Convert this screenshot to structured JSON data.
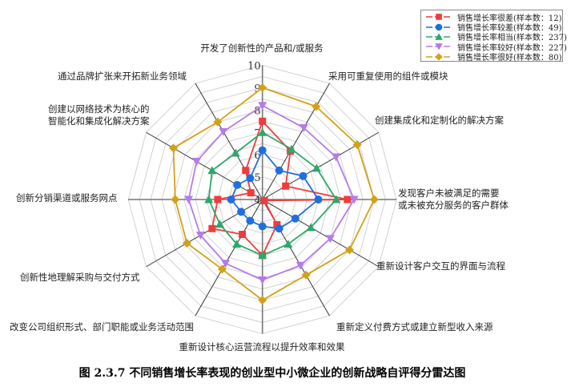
{
  "chart_data": {
    "type": "radar",
    "title": "",
    "axes": [
      "开发了创新性的产品和/或服务",
      "采用可重复使用的组件或模块",
      "创建集成化和定制化的解决方案",
      "发现客户未被满足的需要\n或未被充分服务的客户群体",
      "重新设计客户交互的界面与流程",
      "重新定义付费方式或建立新型收入来源",
      "重新设计核心运营流程以提升效率和效果",
      "改变公司组织形式、部门职能或业务活动范围",
      "创新性地理解采购与交付方式",
      "创新分销渠道或服务网点",
      "创建以网络技术为核心的\n智能化和集成化解决方案",
      "通过品牌扩张来开拓新业务领域"
    ],
    "rlim": [
      4,
      10
    ],
    "r_ticks": [
      "4",
      "5",
      "6",
      "7",
      "8",
      "9",
      "10"
    ],
    "grid": true,
    "legend_position": "top-right",
    "series": [
      {
        "name": "销售增长率很差(样本数：12)",
        "color": "#f03c3c",
        "marker": "square",
        "values": [
          7.5,
          6.5,
          5.2,
          7.8,
          4.1,
          5.3,
          6.5,
          5.8,
          6.6,
          6.0,
          4.6,
          5.5
        ]
      },
      {
        "name": "销售增长率较差(样本数：49)",
        "color": "#1f6fe0",
        "marker": "circle",
        "values": [
          6.2,
          5.5,
          6.1,
          6.5,
          5.7,
          5.5,
          5.2,
          5.1,
          5.1,
          5.4,
          5.3,
          5.1
        ]
      },
      {
        "name": "销售增长率相当(样本数：237)",
        "color": "#2ea86a",
        "marker": "triangle-up",
        "values": [
          7.0,
          6.6,
          6.8,
          7.3,
          6.5,
          6.3,
          6.5,
          6.3,
          6.2,
          6.4,
          6.6,
          6.4
        ]
      },
      {
        "name": "销售增长率较好(样本数：227)",
        "color": "#b57be8",
        "marker": "triangle-down",
        "values": [
          8.2,
          7.7,
          7.8,
          8.1,
          7.5,
          7.4,
          7.6,
          7.3,
          7.2,
          7.3,
          7.4,
          7.5
        ]
      },
      {
        "name": "销售增长率很好(样本数：80)",
        "color": "#d4a017",
        "marker": "diamond",
        "values": [
          9.0,
          8.8,
          8.9,
          9.0,
          8.5,
          7.9,
          8.5,
          7.6,
          7.9,
          7.9,
          8.6,
          8.0
        ]
      }
    ]
  },
  "caption": "图 2.3.7  不同销售增长率表现的创业型中小微企业的创新战略自评得分雷达图"
}
